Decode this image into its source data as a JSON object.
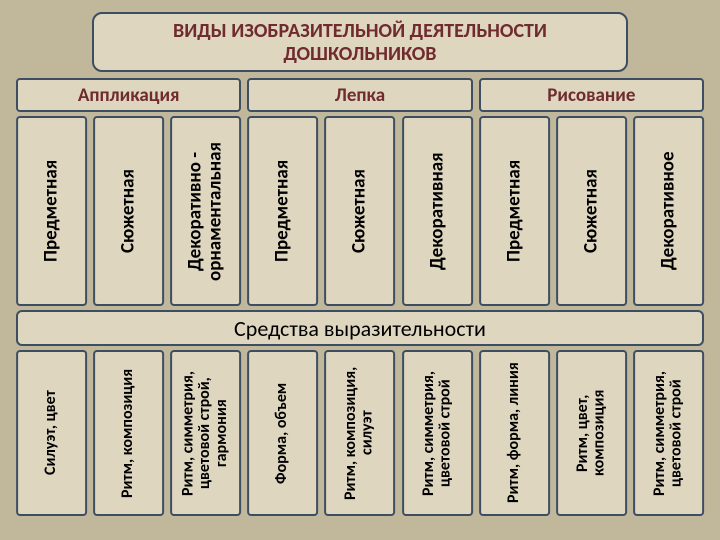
{
  "background_color": "#c1b79b",
  "title": {
    "text": "ВИДЫ ИЗОБРАЗИТЕЛЬНОЙ ДЕЯТЕЛЬНОСТИ ДОШКОЛЬНИКОВ",
    "bg": "#ded6bf",
    "border": "#3d4e63",
    "border_width": 2,
    "fontsize": 20,
    "color": "#6f2b2e"
  },
  "categories": {
    "bg": "#ded6bf",
    "border": "#3d4e63",
    "border_width": 2,
    "fontsize": 19,
    "color": "#6f2b2e",
    "items": [
      {
        "label": "Аппликация",
        "flex": 3
      },
      {
        "label": "Лепка",
        "flex": 3
      },
      {
        "label": "Рисование",
        "flex": 3
      }
    ]
  },
  "top_row": {
    "height": 190,
    "bg": "#ded6bf",
    "border": "#3d4e63",
    "border_width": 2,
    "fontsize": 19,
    "color": "#000000",
    "boxes": [
      {
        "label": "Предметная",
        "flex": 1
      },
      {
        "label": "Сюжетная",
        "flex": 1
      },
      {
        "label": "Декоративно - орнаментальная",
        "flex": 1
      },
      {
        "label": "Предметная",
        "flex": 1
      },
      {
        "label": "Сюжетная",
        "flex": 1
      },
      {
        "label": "Декоративная",
        "flex": 1
      },
      {
        "label": "Предметная",
        "flex": 1
      },
      {
        "label": "Сюжетная",
        "flex": 1
      },
      {
        "label": "Декоративное",
        "flex": 1
      }
    ]
  },
  "middle": {
    "text": "Средства выразительности",
    "bg": "#ded6bf",
    "border": "#3d4e63",
    "border_width": 2,
    "fontsize": 22,
    "color": "#000000"
  },
  "bottom_row": {
    "height": 166,
    "bg": "#ded6bf",
    "border": "#3d4e63",
    "border_width": 2,
    "fontsize": 16,
    "color": "#000000",
    "boxes": [
      {
        "label": "Силуэт, цвет",
        "flex": 1
      },
      {
        "label": "Ритм, композиция",
        "flex": 1
      },
      {
        "label": "Ритм, симметрия, цветовой строй, гармония",
        "flex": 1
      },
      {
        "label": "Форма, объем",
        "flex": 1
      },
      {
        "label": "Ритм, композиция, силуэт",
        "flex": 1
      },
      {
        "label": "Ритм, симметрия, цветовой строй",
        "flex": 1
      },
      {
        "label": "Ритм, форма, линия",
        "flex": 1
      },
      {
        "label": "Ритм, цвет, композиция",
        "flex": 1
      },
      {
        "label": "Ритм, симметрия, цветовой строй",
        "flex": 1
      }
    ]
  }
}
